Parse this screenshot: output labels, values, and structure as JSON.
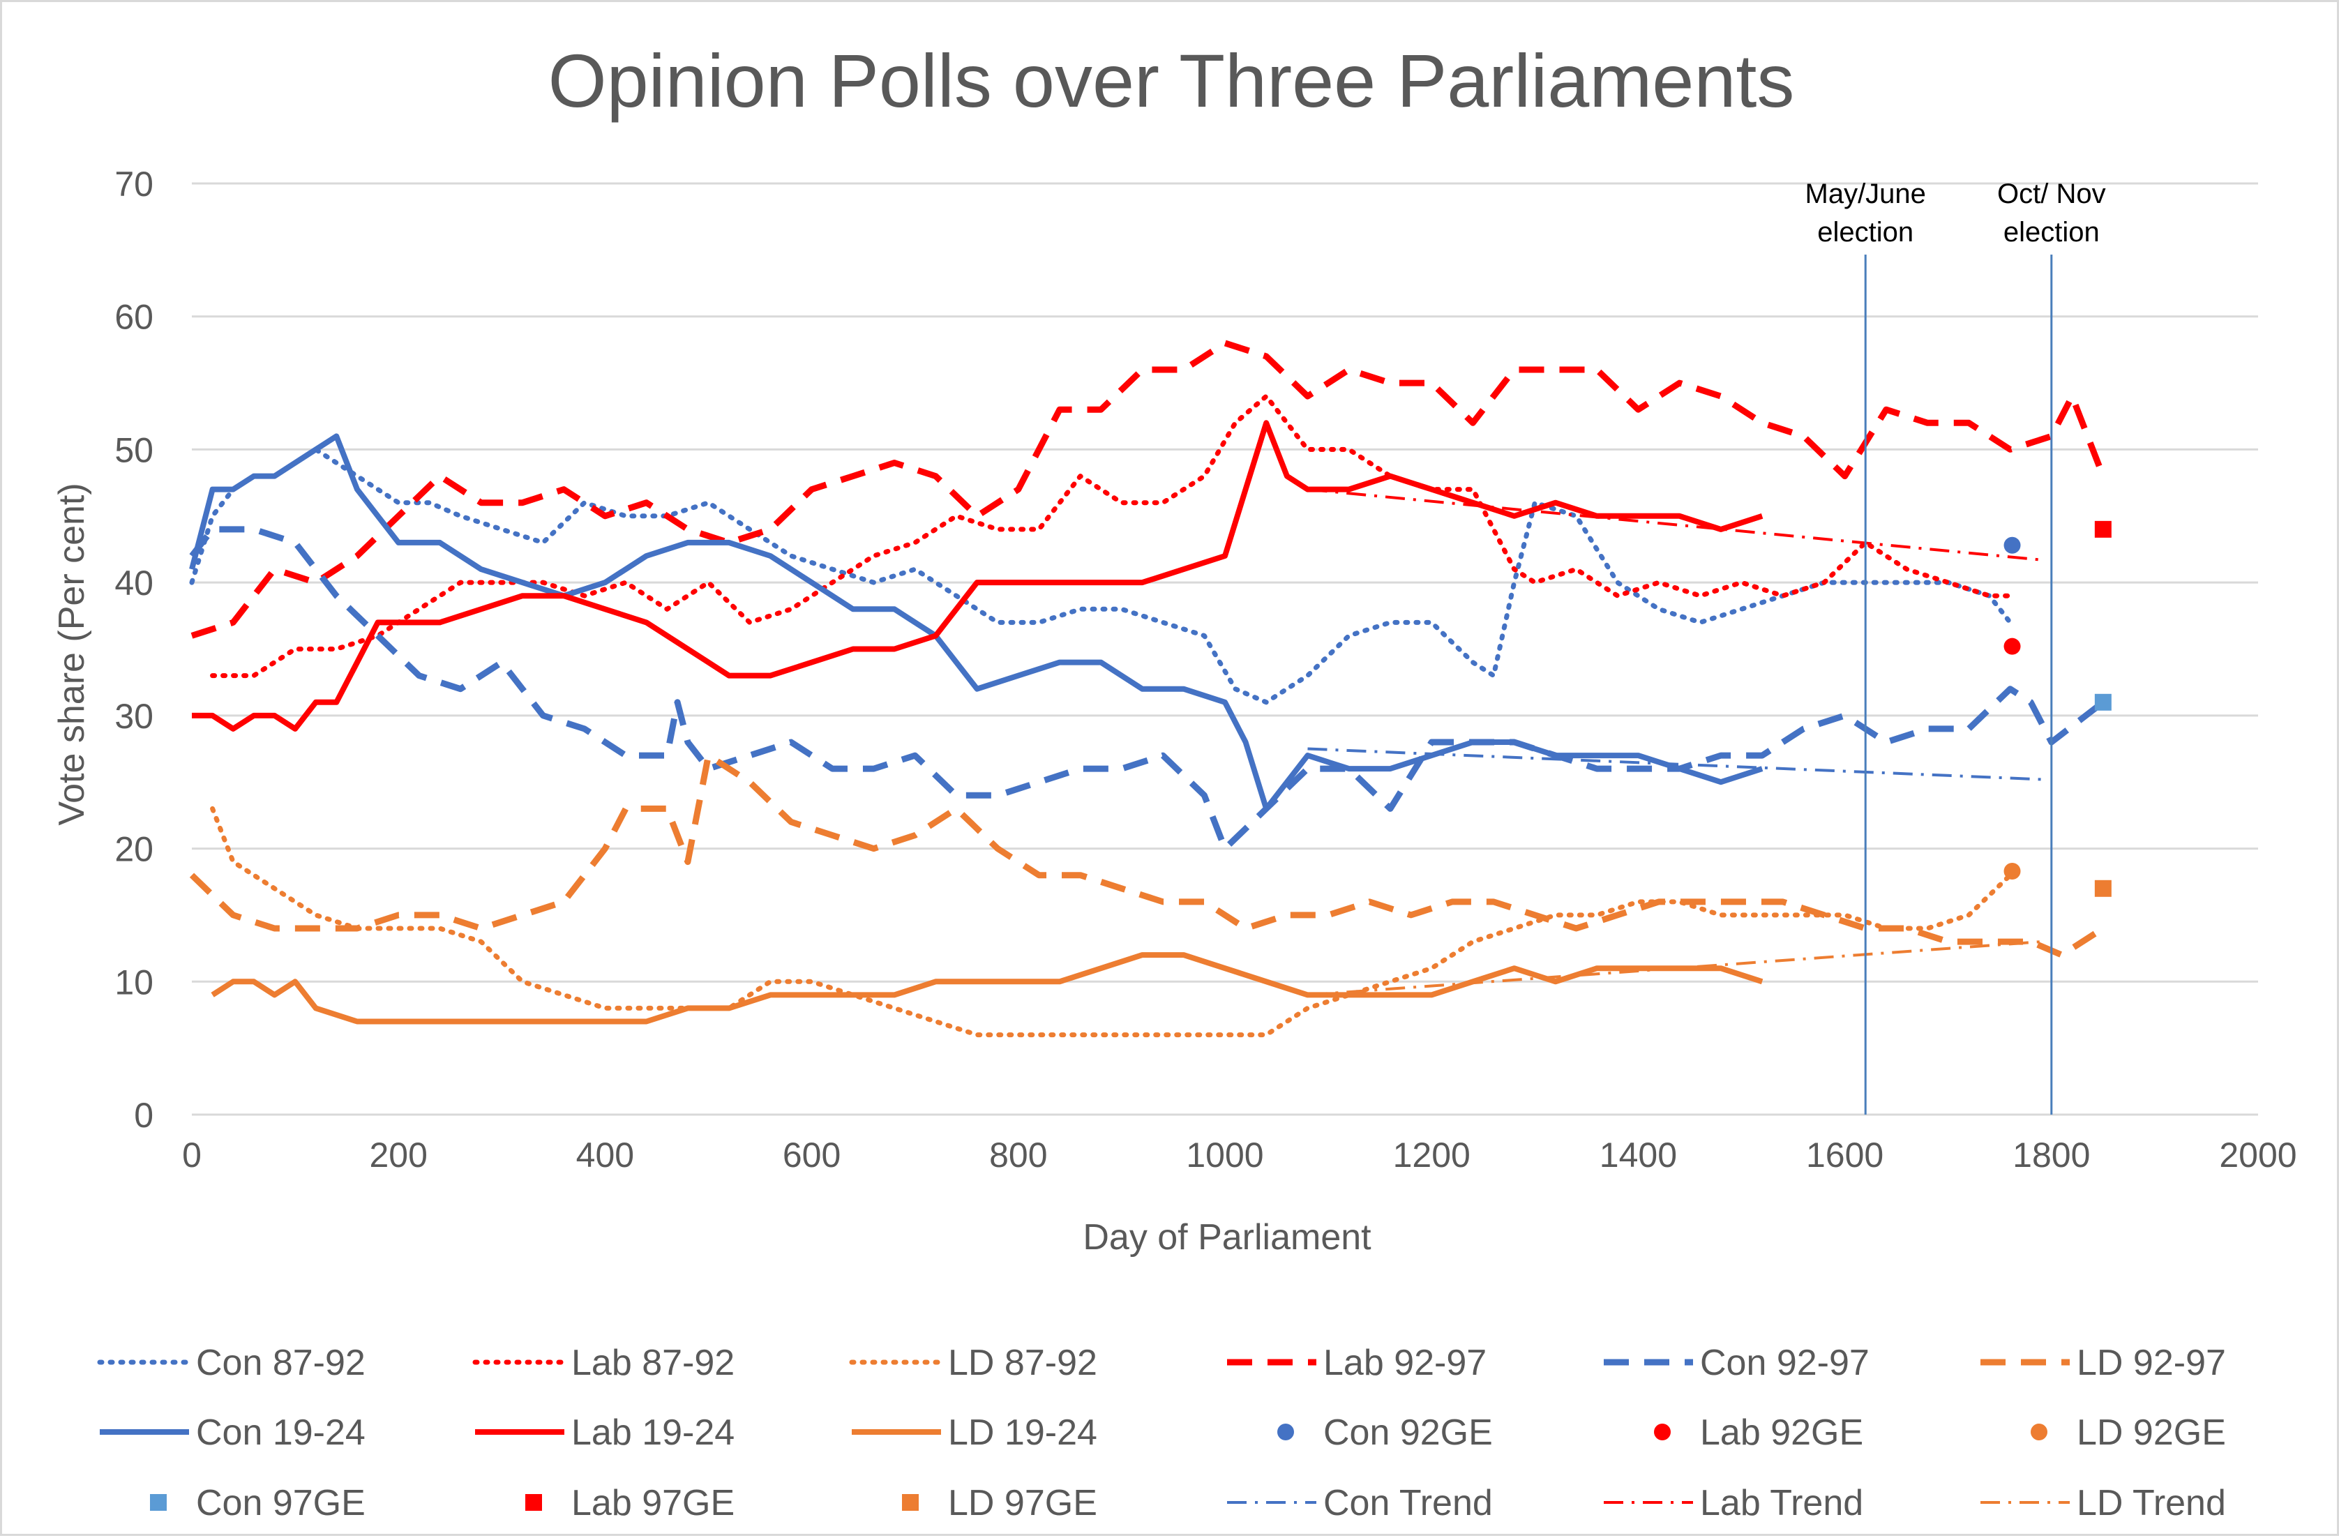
{
  "chart_data": {
    "type": "line",
    "title": "Opinion Polls over Three Parliaments",
    "xlabel": "Day of Parliament",
    "ylabel": "Vote share (Per cent)",
    "xlim": [
      0,
      2000
    ],
    "ylim": [
      0,
      70
    ],
    "xticks": [
      0,
      200,
      400,
      600,
      800,
      1000,
      1200,
      1400,
      1600,
      1800,
      2000
    ],
    "yticks": [
      0,
      10,
      20,
      30,
      40,
      50,
      60,
      70
    ],
    "grid": true,
    "colors": {
      "con": "#4472c4",
      "lab": "#ff0000",
      "ld": "#ed7d31",
      "con_light": "#5b9bd5",
      "vline": "#4a7ebb",
      "grid": "#d9d9d9",
      "text": "#595959"
    },
    "annotations": [
      {
        "label": "May/June election",
        "lines": [
          "May/June",
          "election"
        ],
        "x": 1620
      },
      {
        "label": "Oct/ Nov election",
        "lines": [
          "Oct/ Nov",
          "election"
        ],
        "x": 1800
      }
    ],
    "series": [
      {
        "name": "Con 87-92",
        "party": "con",
        "style": "dotted",
        "x": [
          0,
          20,
          40,
          60,
          80,
          100,
          120,
          140,
          160,
          180,
          200,
          230,
          260,
          300,
          340,
          380,
          420,
          460,
          500,
          540,
          580,
          620,
          660,
          700,
          740,
          780,
          820,
          860,
          900,
          940,
          980,
          1010,
          1040,
          1080,
          1120,
          1160,
          1200,
          1240,
          1260,
          1280,
          1300,
          1340,
          1380,
          1420,
          1460,
          1500,
          1540,
          1580,
          1620,
          1660,
          1700,
          1740,
          1760
        ],
        "values": [
          40,
          45,
          47,
          48,
          48,
          49,
          50,
          49,
          48,
          47,
          46,
          46,
          45,
          44,
          43,
          46,
          45,
          45,
          46,
          44,
          42,
          41,
          40,
          41,
          39,
          37,
          37,
          38,
          38,
          37,
          36,
          32,
          31,
          33,
          36,
          37,
          37,
          34,
          33,
          40,
          46,
          45,
          40,
          38,
          37,
          38,
          39,
          40,
          40,
          40,
          40,
          39,
          37
        ]
      },
      {
        "name": "Lab 87-92",
        "party": "lab",
        "style": "dotted",
        "x": [
          20,
          60,
          100,
          140,
          180,
          220,
          260,
          300,
          340,
          380,
          420,
          460,
          500,
          540,
          580,
          620,
          660,
          700,
          740,
          780,
          820,
          860,
          900,
          940,
          980,
          1010,
          1040,
          1080,
          1120,
          1160,
          1200,
          1240,
          1280,
          1300,
          1340,
          1380,
          1420,
          1460,
          1500,
          1540,
          1580,
          1620,
          1660,
          1700,
          1740,
          1760
        ],
        "values": [
          33,
          33,
          35,
          35,
          36,
          38,
          40,
          40,
          40,
          39,
          40,
          38,
          40,
          37,
          38,
          40,
          42,
          43,
          45,
          44,
          44,
          48,
          46,
          46,
          48,
          52,
          54,
          50,
          50,
          48,
          47,
          47,
          41,
          40,
          41,
          39,
          40,
          39,
          40,
          39,
          40,
          43,
          41,
          40,
          39,
          39
        ]
      },
      {
        "name": "LD 87-92",
        "party": "ld",
        "style": "dotted",
        "x": [
          20,
          40,
          80,
          120,
          160,
          200,
          240,
          280,
          320,
          360,
          400,
          440,
          480,
          520,
          560,
          600,
          640,
          680,
          720,
          760,
          800,
          840,
          880,
          920,
          960,
          1000,
          1040,
          1080,
          1120,
          1160,
          1200,
          1240,
          1280,
          1320,
          1360,
          1400,
          1440,
          1480,
          1520,
          1560,
          1600,
          1640,
          1680,
          1720,
          1760
        ],
        "values": [
          23,
          19,
          17,
          15,
          14,
          14,
          14,
          13,
          10,
          9,
          8,
          8,
          8,
          8,
          10,
          10,
          9,
          8,
          7,
          6,
          6,
          6,
          6,
          6,
          6,
          6,
          6,
          8,
          9,
          10,
          11,
          13,
          14,
          15,
          15,
          16,
          16,
          15,
          15,
          15,
          15,
          14,
          14,
          15,
          18
        ]
      },
      {
        "name": "Lab 92-97",
        "party": "lab",
        "style": "dashed",
        "x": [
          0,
          40,
          80,
          120,
          160,
          200,
          240,
          280,
          320,
          360,
          400,
          440,
          480,
          520,
          560,
          600,
          640,
          680,
          720,
          760,
          800,
          840,
          880,
          920,
          960,
          1000,
          1040,
          1080,
          1120,
          1160,
          1200,
          1240,
          1280,
          1320,
          1360,
          1400,
          1440,
          1480,
          1520,
          1560,
          1600,
          1640,
          1680,
          1720,
          1760,
          1800,
          1820,
          1850
        ],
        "values": [
          36,
          37,
          41,
          40,
          42,
          45,
          48,
          46,
          46,
          47,
          45,
          46,
          44,
          43,
          44,
          47,
          48,
          49,
          48,
          45,
          47,
          53,
          53,
          56,
          56,
          58,
          57,
          54,
          56,
          55,
          55,
          52,
          56,
          56,
          56,
          53,
          55,
          54,
          52,
          51,
          48,
          53,
          52,
          52,
          50,
          51,
          54,
          48
        ]
      },
      {
        "name": "Con 92-97",
        "party": "con",
        "style": "dashed",
        "x": [
          0,
          20,
          60,
          100,
          140,
          180,
          220,
          260,
          300,
          340,
          380,
          420,
          460,
          470,
          480,
          500,
          540,
          580,
          620,
          660,
          700,
          740,
          780,
          820,
          860,
          900,
          940,
          980,
          1000,
          1040,
          1080,
          1120,
          1160,
          1200,
          1240,
          1280,
          1320,
          1360,
          1400,
          1440,
          1480,
          1520,
          1560,
          1600,
          1640,
          1680,
          1720,
          1760,
          1780,
          1800,
          1850
        ],
        "values": [
          42,
          44,
          44,
          43,
          39,
          36,
          33,
          32,
          34,
          30,
          29,
          27,
          27,
          31,
          28,
          26,
          27,
          28,
          26,
          26,
          27,
          24,
          24,
          25,
          26,
          26,
          27,
          24,
          20,
          23,
          26,
          26,
          23,
          28,
          28,
          28,
          27,
          26,
          26,
          26,
          27,
          27,
          29,
          30,
          28,
          29,
          29,
          32,
          31,
          28,
          31
        ]
      },
      {
        "name": "LD 92-97",
        "party": "ld",
        "style": "dashed",
        "x": [
          0,
          40,
          80,
          120,
          160,
          200,
          240,
          280,
          320,
          360,
          400,
          420,
          460,
          480,
          500,
          540,
          580,
          620,
          660,
          700,
          740,
          780,
          820,
          860,
          900,
          940,
          980,
          1020,
          1060,
          1100,
          1140,
          1180,
          1220,
          1260,
          1300,
          1340,
          1380,
          1420,
          1460,
          1500,
          1540,
          1580,
          1620,
          1660,
          1700,
          1740,
          1780,
          1810,
          1850
        ],
        "values": [
          18,
          15,
          14,
          14,
          14,
          15,
          15,
          14,
          15,
          16,
          20,
          23,
          23,
          19,
          27,
          25,
          22,
          21,
          20,
          21,
          23,
          20,
          18,
          18,
          17,
          16,
          16,
          14,
          15,
          15,
          16,
          15,
          16,
          16,
          15,
          14,
          15,
          16,
          16,
          16,
          16,
          15,
          14,
          14,
          13,
          13,
          13,
          12,
          14
        ]
      },
      {
        "name": "Con 19-24",
        "party": "con",
        "style": "solid",
        "x": [
          0,
          20,
          40,
          60,
          80,
          100,
          120,
          140,
          160,
          180,
          200,
          240,
          280,
          320,
          360,
          400,
          440,
          480,
          520,
          560,
          600,
          640,
          680,
          720,
          760,
          800,
          840,
          880,
          920,
          960,
          1000,
          1020,
          1040,
          1060,
          1080,
          1120,
          1160,
          1200,
          1240,
          1280,
          1320,
          1360,
          1400,
          1440,
          1480,
          1520
        ],
        "values": [
          41,
          47,
          47,
          48,
          48,
          49,
          50,
          51,
          47,
          45,
          43,
          43,
          41,
          40,
          39,
          40,
          42,
          43,
          43,
          42,
          40,
          38,
          38,
          36,
          32,
          33,
          34,
          34,
          32,
          32,
          31,
          28,
          23,
          25,
          27,
          26,
          26,
          27,
          28,
          28,
          27,
          27,
          27,
          26,
          25,
          26
        ]
      },
      {
        "name": "Lab 19-24",
        "party": "lab",
        "style": "solid",
        "x": [
          0,
          20,
          40,
          60,
          80,
          100,
          120,
          140,
          160,
          180,
          200,
          240,
          280,
          320,
          360,
          400,
          440,
          480,
          520,
          560,
          600,
          640,
          680,
          720,
          760,
          800,
          840,
          880,
          920,
          960,
          1000,
          1020,
          1040,
          1060,
          1080,
          1120,
          1160,
          1200,
          1240,
          1280,
          1320,
          1360,
          1400,
          1440,
          1480,
          1520
        ],
        "values": [
          30,
          30,
          29,
          30,
          30,
          29,
          31,
          31,
          34,
          37,
          37,
          37,
          38,
          39,
          39,
          38,
          37,
          35,
          33,
          33,
          34,
          35,
          35,
          36,
          40,
          40,
          40,
          40,
          40,
          41,
          42,
          47,
          52,
          48,
          47,
          47,
          48,
          47,
          46,
          45,
          46,
          45,
          45,
          45,
          44,
          45
        ]
      },
      {
        "name": "LD 19-24",
        "party": "ld",
        "style": "solid",
        "x": [
          20,
          40,
          60,
          80,
          100,
          120,
          160,
          200,
          240,
          280,
          320,
          360,
          400,
          440,
          480,
          520,
          560,
          600,
          640,
          680,
          720,
          760,
          800,
          840,
          880,
          920,
          960,
          1000,
          1040,
          1080,
          1120,
          1160,
          1200,
          1240,
          1280,
          1320,
          1360,
          1400,
          1440,
          1480,
          1520
        ],
        "values": [
          9,
          10,
          10,
          9,
          10,
          8,
          7,
          7,
          7,
          7,
          7,
          7,
          7,
          7,
          8,
          8,
          9,
          9,
          9,
          9,
          10,
          10,
          10,
          10,
          11,
          12,
          12,
          11,
          10,
          9,
          9,
          9,
          9,
          10,
          11,
          10,
          11,
          11,
          11,
          11,
          10
        ]
      },
      {
        "name": "Con 92GE",
        "party": "con",
        "style": "circle",
        "x": [
          1762
        ],
        "values": [
          42.8
        ]
      },
      {
        "name": "Lab 92GE",
        "party": "lab",
        "style": "circle",
        "x": [
          1762
        ],
        "values": [
          35.2
        ]
      },
      {
        "name": "LD 92GE",
        "party": "ld",
        "style": "circle",
        "x": [
          1762
        ],
        "values": [
          18.3
        ]
      },
      {
        "name": "Con 97GE",
        "party": "con_light",
        "style": "square",
        "x": [
          1850
        ],
        "values": [
          31
        ]
      },
      {
        "name": "Lab 97GE",
        "party": "lab",
        "style": "square",
        "x": [
          1850
        ],
        "values": [
          44
        ]
      },
      {
        "name": "LD 97GE",
        "party": "ld",
        "style": "square",
        "x": [
          1850
        ],
        "values": [
          17
        ]
      },
      {
        "name": "Con Trend",
        "party": "con",
        "style": "dashdot",
        "x": [
          1080,
          1790
        ],
        "values": [
          27.5,
          25.2
        ]
      },
      {
        "name": "Lab Trend",
        "party": "lab",
        "style": "dashdot",
        "x": [
          1080,
          1790
        ],
        "values": [
          47.0,
          41.7
        ]
      },
      {
        "name": "LD Trend",
        "party": "ld",
        "style": "dashdot",
        "x": [
          1080,
          1790
        ],
        "values": [
          9.0,
          13.0
        ]
      }
    ]
  }
}
